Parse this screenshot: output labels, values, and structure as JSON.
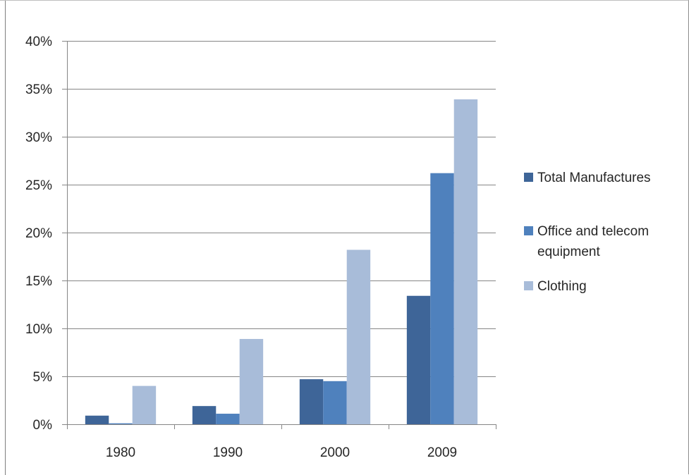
{
  "chart_data": {
    "type": "bar",
    "categories": [
      "1980",
      "1990",
      "2000",
      "2009"
    ],
    "series": [
      {
        "name": "Total Manufactures",
        "values": [
          0.9,
          1.9,
          4.7,
          13.4
        ],
        "color": "#3e6598"
      },
      {
        "name": "Office and telecom equipment",
        "values": [
          0.1,
          1.1,
          4.5,
          26.2
        ],
        "color": "#4f81bd"
      },
      {
        "name": "Clothing",
        "values": [
          4.0,
          8.9,
          18.2,
          33.9
        ],
        "color": "#a8bcd9"
      }
    ],
    "legend_labels": [
      [
        "Total Manufactures"
      ],
      [
        "Office and telecom",
        "equipment"
      ],
      [
        "Clothing"
      ]
    ],
    "y_ticks": [
      0,
      5,
      10,
      15,
      20,
      25,
      30,
      35,
      40
    ],
    "y_tick_labels": [
      "0%",
      "5%",
      "10%",
      "15%",
      "20%",
      "25%",
      "30%",
      "35%",
      "40%"
    ],
    "ylim": [
      0,
      40
    ],
    "y_unit": "%",
    "grid": true,
    "legend_position": "right",
    "title": "",
    "xlabel": "",
    "ylabel": "",
    "colors": {
      "gridline": "#868686",
      "axis": "#868686",
      "text": "#262626"
    }
  }
}
